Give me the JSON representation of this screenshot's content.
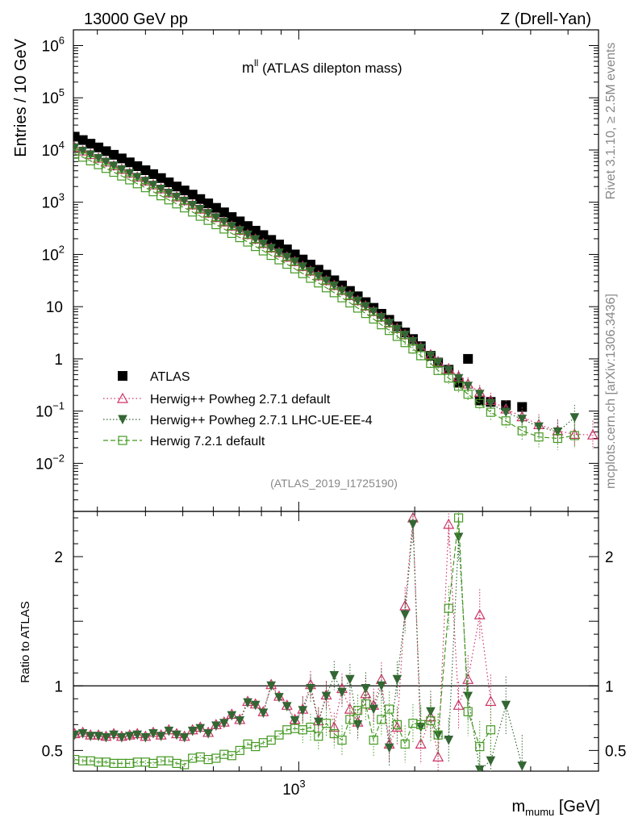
{
  "header": {
    "energy": "13000 GeV pp",
    "process": "Z (Drell-Yan)"
  },
  "side_text": {
    "rivet": "Rivet 3.1.10, ≥ 2.5M events",
    "source": "mcplots.cern.ch [arXiv:1306.3436]"
  },
  "chart_data": {
    "type": "scatter",
    "title_main": "m",
    "title_sup": "ll",
    "title_rest": " (ATLAS dilepton mass)",
    "analysis_id": "(ATLAS_2019_I1725190)",
    "ylabel_top": "Entries / 10 GeV",
    "ylabel_ratio": "Ratio to ATLAS",
    "xlabel_main": "m",
    "xlabel_sub": "mumu",
    "xlabel_unit": " [GeV]",
    "x_scale": "log",
    "xlim": [
      260,
      6000
    ],
    "ylim_top": [
      0.0012,
      2000000
    ],
    "ylim_ratio": [
      0.34,
      2.35
    ],
    "top_y_ticks": [
      {
        "value": 1000000,
        "base": "10",
        "exp": "6"
      },
      {
        "value": 100000,
        "base": "10",
        "exp": "5"
      },
      {
        "value": 10000,
        "base": "10",
        "exp": "4"
      },
      {
        "value": 1000,
        "base": "10",
        "exp": "3"
      },
      {
        "value": 100,
        "base": "10",
        "exp": "2"
      },
      {
        "value": 10,
        "base": "10",
        "exp": ""
      },
      {
        "value": 1,
        "base": "1",
        "exp": ""
      },
      {
        "value": 0.1,
        "base": "10",
        "exp": "−1"
      },
      {
        "value": 0.01,
        "base": "10",
        "exp": "−2"
      }
    ],
    "ratio_y_ticks": [
      {
        "value": 0.5,
        "label": "0.5"
      },
      {
        "value": 1,
        "label": "1"
      },
      {
        "value": 2,
        "label": "2"
      }
    ],
    "x_ticks": [
      {
        "value": 1000,
        "base": "10",
        "exp": "3"
      }
    ],
    "legend": [
      {
        "label": "ATLAS",
        "color": "#000000"
      },
      {
        "label": "Herwig++ Powheg 2.7.1 default",
        "color": "#cc3366"
      },
      {
        "label": "Herwig++ Powheg 2.7.1 LHC-UE-EE-4",
        "color": "#336633"
      },
      {
        "label": "Herwig 7.2.1 default",
        "color": "#449922"
      }
    ],
    "series": [
      {
        "name": "ATLAS",
        "x": [
          262,
          275,
          288,
          302,
          316,
          331,
          347,
          364,
          381,
          400,
          419,
          439,
          460,
          482,
          505,
          530,
          555,
          582,
          610,
          640,
          670,
          703,
          737,
          772,
          809,
          848,
          889,
          932,
          977,
          1024,
          1073,
          1125,
          1179,
          1236,
          1295,
          1358,
          1423,
          1492,
          1564,
          1639,
          1718,
          1801,
          1888,
          1979,
          2074,
          2200,
          2300,
          2450,
          2600,
          2750,
          2950,
          3150,
          3450,
          3800
        ],
        "y": [
          18000,
          15500,
          13200,
          11200,
          9500,
          8100,
          6900,
          5800,
          4900,
          4100,
          3450,
          2900,
          2400,
          2000,
          1680,
          1400,
          1150,
          950,
          780,
          640,
          520,
          430,
          350,
          285,
          235,
          190,
          155,
          125,
          100,
          80,
          64,
          51,
          41,
          32,
          25.5,
          20,
          15.8,
          12.2,
          9.5,
          7.3,
          5.6,
          4.2,
          3.2,
          2.4,
          1.75,
          1.15,
          0.85,
          0.62,
          0.35,
          1.0,
          0.16,
          0.15,
          0.13,
          0.12
        ]
      },
      {
        "name": "Herwig++ Powheg 2.7.1 default",
        "x": [
          262,
          275,
          288,
          302,
          316,
          331,
          347,
          364,
          381,
          400,
          419,
          439,
          460,
          482,
          505,
          530,
          555,
          582,
          610,
          640,
          670,
          703,
          737,
          772,
          809,
          848,
          889,
          932,
          977,
          1024,
          1073,
          1125,
          1179,
          1236,
          1295,
          1358,
          1423,
          1492,
          1564,
          1639,
          1718,
          1801,
          1888,
          1979,
          2074,
          2200,
          2300,
          2450,
          2600,
          2750,
          2950,
          3150,
          3450,
          3800,
          4200,
          4700,
          5200,
          5800
        ],
        "y": [
          11200,
          9600,
          8200,
          7000,
          5900,
          5000,
          4270,
          3600,
          3040,
          2560,
          2150,
          1800,
          1510,
          1270,
          1070,
          890,
          740,
          620,
          510,
          420,
          350,
          290,
          240,
          196,
          162,
          133,
          109,
          89,
          73,
          59,
          48,
          39,
          31.5,
          25.5,
          20.5,
          16.3,
          13,
          10.3,
          8.1,
          6.3,
          4.9,
          3.8,
          2.9,
          2.2,
          1.65,
          1.2,
          0.88,
          0.64,
          0.46,
          0.33,
          0.23,
          0.16,
          0.11,
          0.078,
          0.055,
          0.042,
          0.036,
          0.035
        ]
      },
      {
        "name": "Herwig++ Powheg 2.7.1 LHC-UE-EE-4",
        "x": [
          262,
          275,
          288,
          302,
          316,
          331,
          347,
          364,
          381,
          400,
          419,
          439,
          460,
          482,
          505,
          530,
          555,
          582,
          610,
          640,
          670,
          703,
          737,
          772,
          809,
          848,
          889,
          932,
          977,
          1024,
          1073,
          1125,
          1179,
          1236,
          1295,
          1358,
          1423,
          1492,
          1564,
          1639,
          1718,
          1801,
          1888,
          1979,
          2074,
          2200,
          2300,
          2450,
          2600,
          2750,
          2950,
          3150,
          3450,
          3800,
          4200,
          4700,
          5200
        ],
        "y": [
          11000,
          9500,
          8100,
          6900,
          5850,
          4950,
          4200,
          3550,
          3000,
          2530,
          2120,
          1780,
          1490,
          1250,
          1050,
          875,
          730,
          610,
          505,
          415,
          345,
          285,
          236,
          193,
          159,
          131,
          107,
          88,
          72,
          58,
          47,
          38,
          31,
          25,
          20,
          16,
          12.8,
          10.1,
          8,
          6.2,
          4.8,
          3.7,
          2.85,
          2.15,
          1.6,
          1.15,
          0.85,
          0.6,
          0.42,
          0.3,
          0.21,
          0.14,
          0.095,
          0.07,
          0.05,
          0.04,
          0.075
        ]
      },
      {
        "name": "Herwig 7.2.1 default",
        "x": [
          262,
          275,
          288,
          302,
          316,
          331,
          347,
          364,
          381,
          400,
          419,
          439,
          460,
          482,
          505,
          530,
          555,
          582,
          610,
          640,
          670,
          703,
          737,
          772,
          809,
          848,
          889,
          932,
          977,
          1024,
          1073,
          1125,
          1179,
          1236,
          1295,
          1358,
          1423,
          1492,
          1564,
          1639,
          1718,
          1801,
          1888,
          1979,
          2074,
          2200,
          2300,
          2450,
          2600,
          2750,
          2950,
          3150,
          3450,
          3800,
          4200,
          4700,
          5200
        ],
        "y": [
          8500,
          7300,
          6200,
          5250,
          4450,
          3750,
          3180,
          2680,
          2260,
          1900,
          1590,
          1330,
          1110,
          930,
          780,
          650,
          540,
          450,
          372,
          307,
          253,
          210,
          173,
          142,
          117,
          96,
          79,
          65,
          53,
          43,
          35,
          28.5,
          23,
          18.5,
          14.8,
          11.8,
          9.4,
          7.4,
          5.8,
          4.5,
          3.5,
          2.7,
          2.05,
          1.55,
          1.15,
          0.82,
          0.6,
          0.43,
          0.3,
          0.21,
          0.14,
          0.095,
          0.065,
          0.042,
          0.032,
          0.03,
          0.034
        ]
      }
    ],
    "ratio_series": [
      {
        "name": "Herwig++ Powheg 2.7.1 default",
        "x": [
          262,
          275,
          288,
          302,
          316,
          331,
          347,
          364,
          381,
          400,
          419,
          439,
          460,
          482,
          505,
          530,
          555,
          582,
          610,
          640,
          670,
          703,
          737,
          772,
          809,
          848,
          889,
          932,
          977,
          1024,
          1073,
          1125,
          1179,
          1236,
          1295,
          1358,
          1423,
          1492,
          1564,
          1639,
          1718,
          1801,
          1888,
          1979,
          2074,
          2200,
          2300,
          2450,
          2600,
          2750,
          2950,
          3150
        ],
        "y": [
          0.63,
          0.64,
          0.62,
          0.62,
          0.61,
          0.63,
          0.61,
          0.62,
          0.63,
          0.61,
          0.64,
          0.62,
          0.66,
          0.63,
          0.61,
          0.66,
          0.68,
          0.64,
          0.7,
          0.72,
          0.78,
          0.74,
          0.88,
          0.86,
          0.8,
          1.01,
          0.92,
          0.85,
          0.74,
          0.82,
          1.01,
          0.73,
          0.93,
          0.68,
          0.98,
          0.82,
          0.72,
          0.94,
          0.85,
          1.05,
          0.55,
          0.68,
          1.62,
          2.3,
          0.55,
          0.76,
          0.45,
          2.25,
          0.85,
          1.05,
          1.55,
          0.88
        ]
      },
      {
        "name": "Herwig++ Powheg 2.7.1 LHC-UE-EE-4",
        "x": [
          262,
          275,
          288,
          302,
          316,
          331,
          347,
          364,
          381,
          400,
          419,
          439,
          460,
          482,
          505,
          530,
          555,
          582,
          610,
          640,
          670,
          703,
          737,
          772,
          809,
          848,
          889,
          932,
          977,
          1024,
          1073,
          1125,
          1179,
          1236,
          1295,
          1358,
          1423,
          1492,
          1564,
          1639,
          1718,
          1801,
          1888,
          1979,
          2074,
          2200,
          2300,
          2450,
          2600,
          2750,
          2950,
          3150,
          3450,
          3800
        ],
        "y": [
          0.62,
          0.63,
          0.61,
          0.61,
          0.6,
          0.62,
          0.6,
          0.61,
          0.62,
          0.6,
          0.63,
          0.61,
          0.65,
          0.62,
          0.6,
          0.65,
          0.67,
          0.63,
          0.69,
          0.71,
          0.77,
          0.73,
          0.87,
          0.85,
          0.79,
          1.0,
          0.91,
          0.84,
          0.73,
          0.81,
          0.98,
          0.72,
          0.92,
          1.08,
          0.95,
          1.05,
          0.7,
          0.98,
          0.82,
          1.0,
          0.52,
          1.05,
          1.55,
          2.25,
          0.68,
          0.8,
          0.62,
          0.58,
          2.15,
          0.92,
          0.35,
          0.42,
          0.85,
          0.38
        ]
      },
      {
        "name": "Herwig 7.2.1 default",
        "x": [
          262,
          275,
          288,
          302,
          316,
          331,
          347,
          364,
          381,
          400,
          419,
          439,
          460,
          482,
          505,
          530,
          555,
          582,
          610,
          640,
          670,
          703,
          737,
          772,
          809,
          848,
          889,
          932,
          977,
          1024,
          1073,
          1125,
          1179,
          1236,
          1295,
          1358,
          1423,
          1492,
          1564,
          1639,
          1718,
          1801,
          1888,
          1979,
          2074,
          2200,
          2300,
          2450,
          2600,
          2750,
          2950,
          3150
        ],
        "y": [
          0.43,
          0.42,
          0.42,
          0.41,
          0.41,
          0.4,
          0.4,
          0.4,
          0.41,
          0.41,
          0.4,
          0.42,
          0.42,
          0.4,
          0.39,
          0.44,
          0.45,
          0.43,
          0.44,
          0.47,
          0.46,
          0.5,
          0.55,
          0.53,
          0.56,
          0.58,
          0.62,
          0.66,
          0.67,
          0.66,
          0.68,
          0.61,
          0.71,
          0.63,
          0.58,
          0.74,
          0.81,
          0.86,
          0.58,
          0.74,
          0.82,
          0.7,
          0.55,
          0.71,
          0.7,
          0.73,
          0.62,
          1.6,
          2.3,
          0.8,
          0.53,
          0.66
        ]
      }
    ]
  }
}
